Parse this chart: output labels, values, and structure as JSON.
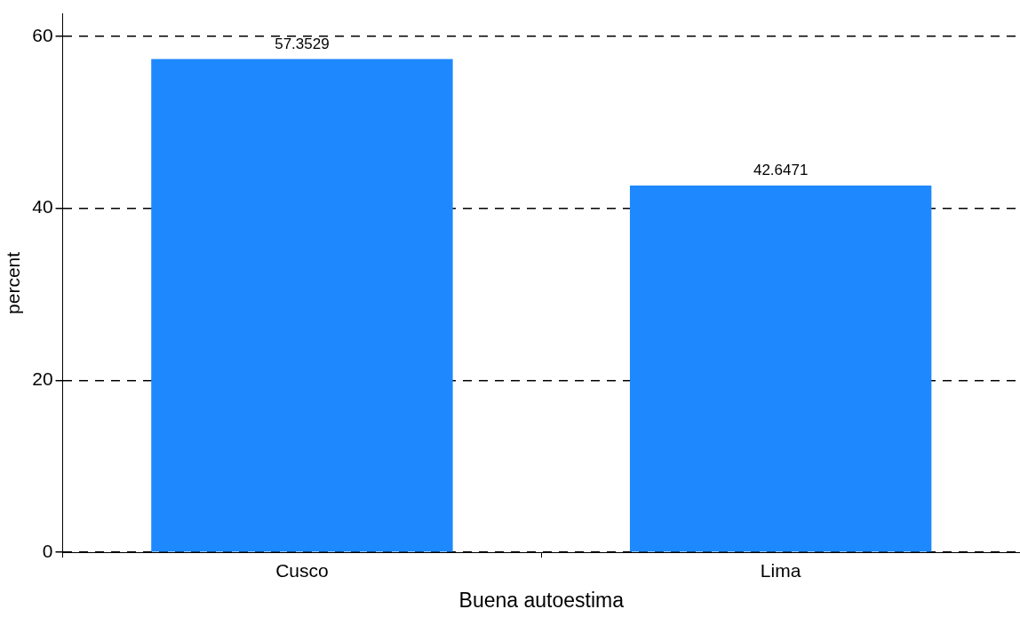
{
  "chart_data": {
    "type": "bar",
    "xlabel": "Buena autoestima",
    "ylabel": "percent",
    "categories": [
      "Cusco",
      "Lima"
    ],
    "values": [
      57.3529,
      42.6471
    ],
    "color": "#1e88ff",
    "ylim": [
      0,
      62.6
    ],
    "yticks": [
      0,
      20,
      40,
      60
    ],
    "grid": "y",
    "data_labels": true
  }
}
